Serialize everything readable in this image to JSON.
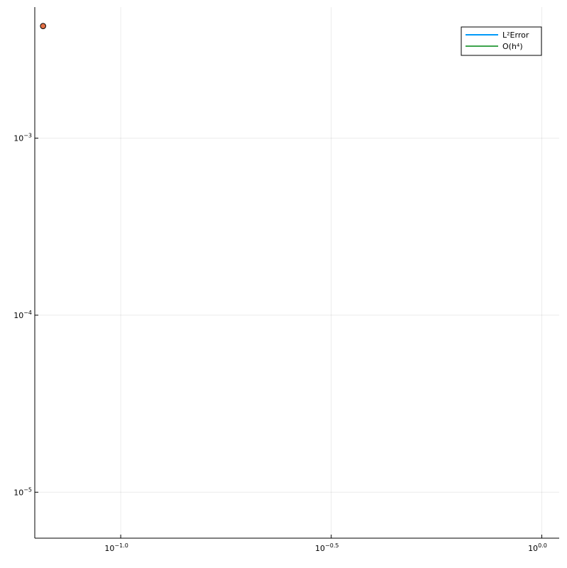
{
  "chart_data": {
    "type": "line",
    "title": "",
    "xlabel": "",
    "ylabel": "",
    "xscale": "log10",
    "yscale": "log10",
    "xlim": [
      0.0625,
      1.1
    ],
    "ylim": [
      5.5e-06,
      0.0055
    ],
    "grid": true,
    "legend_position": "top-right",
    "x_ticks": [
      {
        "value": 0.1,
        "base": "10",
        "exp": "−1.0"
      },
      {
        "value": 0.31623,
        "base": "10",
        "exp": "−0.5"
      },
      {
        "value": 1.0,
        "base": "10",
        "exp": "0.0"
      }
    ],
    "y_ticks": [
      {
        "value": 0.001,
        "base": "10",
        "exp": "−3"
      },
      {
        "value": 0.0001,
        "base": "10",
        "exp": "−4"
      },
      {
        "value": 1e-05,
        "base": "10",
        "exp": "−5"
      }
    ],
    "series": [
      {
        "name": "L²Error",
        "color": "#009af9",
        "kind": "line",
        "points": []
      },
      {
        "name": "O(h⁴)",
        "color": "#3da44d",
        "kind": "line",
        "points": []
      },
      {
        "name": "",
        "color": "#e26f46",
        "kind": "scatter",
        "show_in_legend": false,
        "points": [
          {
            "x": 0.0654,
            "y": 0.0043
          }
        ]
      }
    ]
  }
}
